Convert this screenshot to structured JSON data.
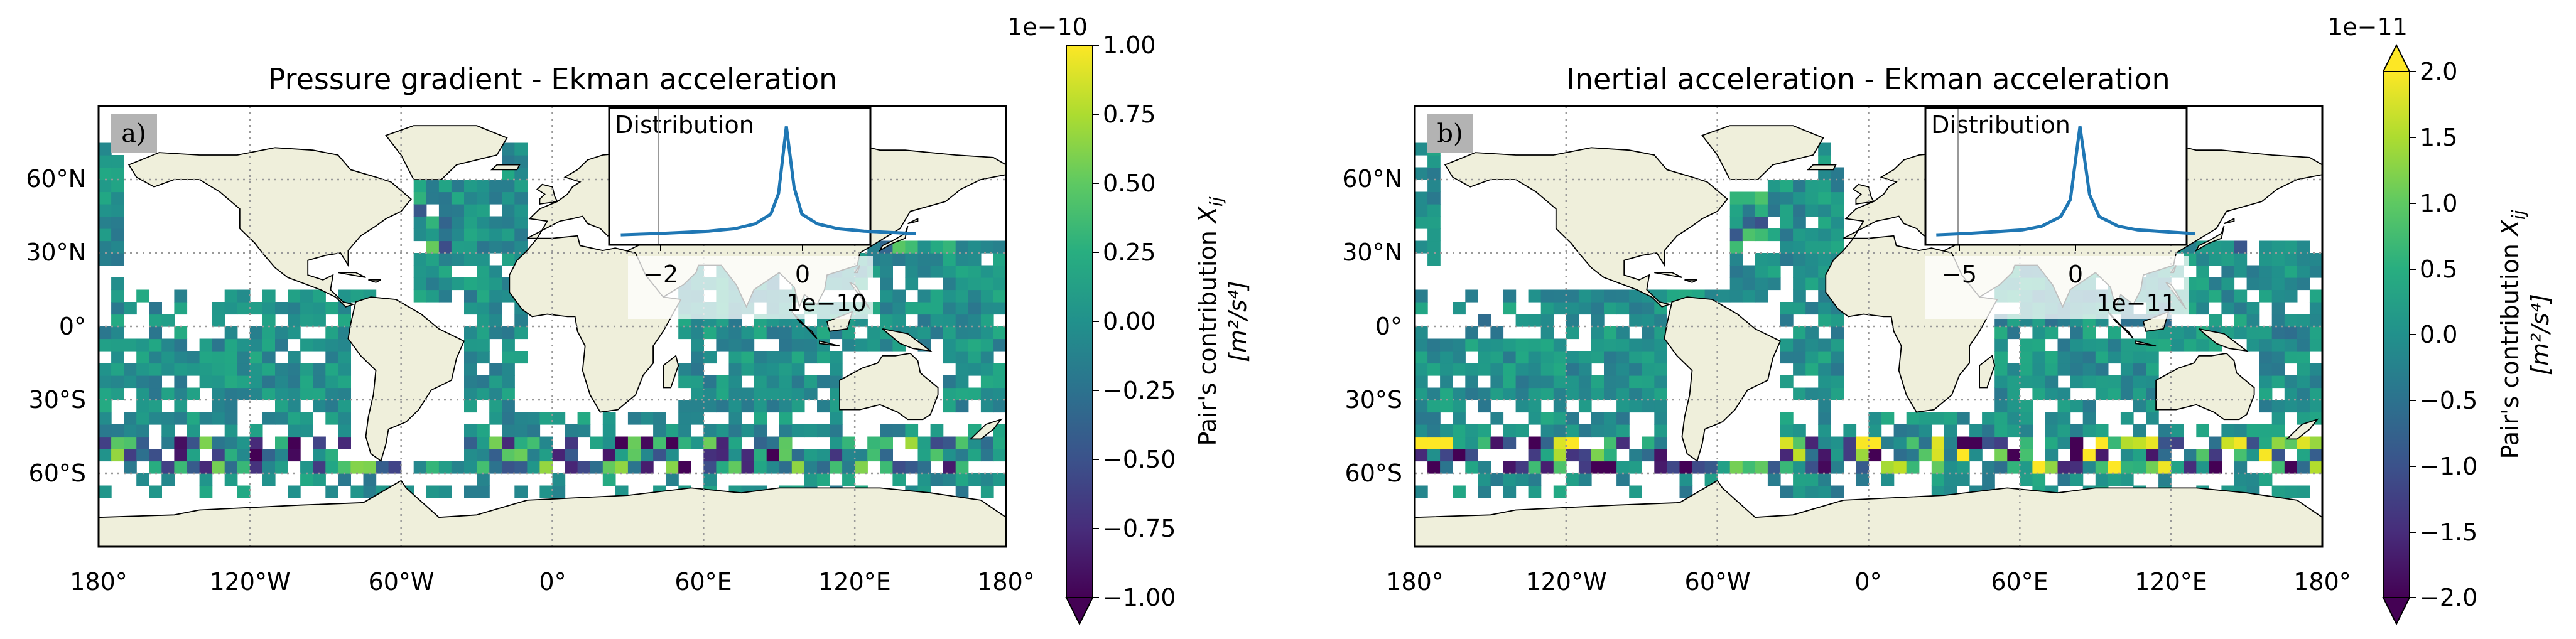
{
  "figure": {
    "panels": [
      {
        "id": "a",
        "panel_label": "a)",
        "title": "Pressure gradient - Ekman acceleration",
        "lon_ticks": [
          "180°",
          "120°W",
          "60°W",
          "0°",
          "60°E",
          "120°E",
          "180°"
        ],
        "lat_ticks": [
          "60°N",
          "30°N",
          "0°",
          "30°S",
          "60°S"
        ],
        "colorbar": {
          "exponent": "1e−10",
          "ticks": [
            "1.00",
            "0.75",
            "0.50",
            "0.25",
            "0.00",
            "−0.25",
            "−0.50",
            "−0.75",
            "−1.00"
          ],
          "label_line1": "Pair's contribution ",
          "label_var": "X",
          "label_sub": "ij",
          "unit": "[m²/s⁴]",
          "extend": "min"
        },
        "inset": {
          "title": "Distribution",
          "xticks": [
            "−2",
            "0"
          ],
          "offset": "1e−10"
        }
      },
      {
        "id": "b",
        "panel_label": "b)",
        "title": "Inertial acceleration - Ekman acceleration",
        "lon_ticks": [
          "180°",
          "120°W",
          "60°W",
          "0°",
          "60°E",
          "120°E",
          "180°"
        ],
        "lat_ticks": [
          "60°N",
          "30°N",
          "0°",
          "30°S",
          "60°S"
        ],
        "colorbar": {
          "exponent": "1e−11",
          "ticks": [
            "2.0",
            "1.5",
            "1.0",
            "0.5",
            "0.0",
            "−0.5",
            "−1.0",
            "−1.5",
            "−2.0"
          ],
          "label_line1": "Pair's contribution ",
          "label_var": "X",
          "label_sub": "ij",
          "unit": "[m²/s⁴]",
          "extend": "both"
        },
        "inset": {
          "title": "Distribution",
          "xticks": [
            "−5",
            "0"
          ],
          "offset": "1e−11"
        }
      }
    ],
    "colors": {
      "land": "#efefdb",
      "ocean_nodata": "#ffffff",
      "curve": "#1f77b4",
      "label_box": "#b3b3b3"
    }
  },
  "chart_data": [
    {
      "type": "heatmap",
      "title": "Pressure gradient - Ekman acceleration",
      "projection": "PlateCarree",
      "xlim": [
        -180,
        180
      ],
      "ylim": [
        -90,
        90
      ],
      "grid": true,
      "colormap": "viridis",
      "clim": [
        -1e-10,
        1e-10
      ],
      "cell_size_deg": 5,
      "colorbar_label": "Pair's contribution Xij [m^2/s^4]",
      "inset": {
        "title": "Distribution",
        "x": [
          -3.2,
          -2.5,
          -2.0,
          -1.5,
          -1.0,
          -0.6,
          -0.3,
          -0.15,
          0.0,
          0.15,
          0.3,
          0.6,
          1.0,
          1.5,
          2.0,
          2.5
        ],
        "y": [
          0.01,
          0.02,
          0.03,
          0.04,
          0.06,
          0.1,
          0.18,
          0.35,
          0.9,
          0.4,
          0.18,
          0.1,
          0.06,
          0.04,
          0.03,
          0.02
        ],
        "x_multiplier": "1e-10"
      }
    },
    {
      "type": "heatmap",
      "title": "Inertial acceleration - Ekman acceleration",
      "projection": "PlateCarree",
      "xlim": [
        -180,
        180
      ],
      "ylim": [
        -90,
        90
      ],
      "grid": true,
      "colormap": "viridis",
      "clim": [
        -2e-11,
        2e-11
      ],
      "cell_size_deg": 5,
      "colorbar_label": "Pair's contribution Xij [m^2/s^4]",
      "inset": {
        "title": "Distribution",
        "x": [
          -7.5,
          -6.0,
          -5.0,
          -4.0,
          -3.0,
          -2.0,
          -1.0,
          -0.5,
          0.0,
          0.5,
          1.0,
          2.0,
          3.0,
          4.0,
          5.0,
          6.0
        ],
        "y": [
          0.01,
          0.02,
          0.03,
          0.04,
          0.05,
          0.08,
          0.16,
          0.3,
          0.9,
          0.34,
          0.16,
          0.08,
          0.05,
          0.04,
          0.03,
          0.02
        ],
        "x_multiplier": "1e-11"
      }
    }
  ]
}
